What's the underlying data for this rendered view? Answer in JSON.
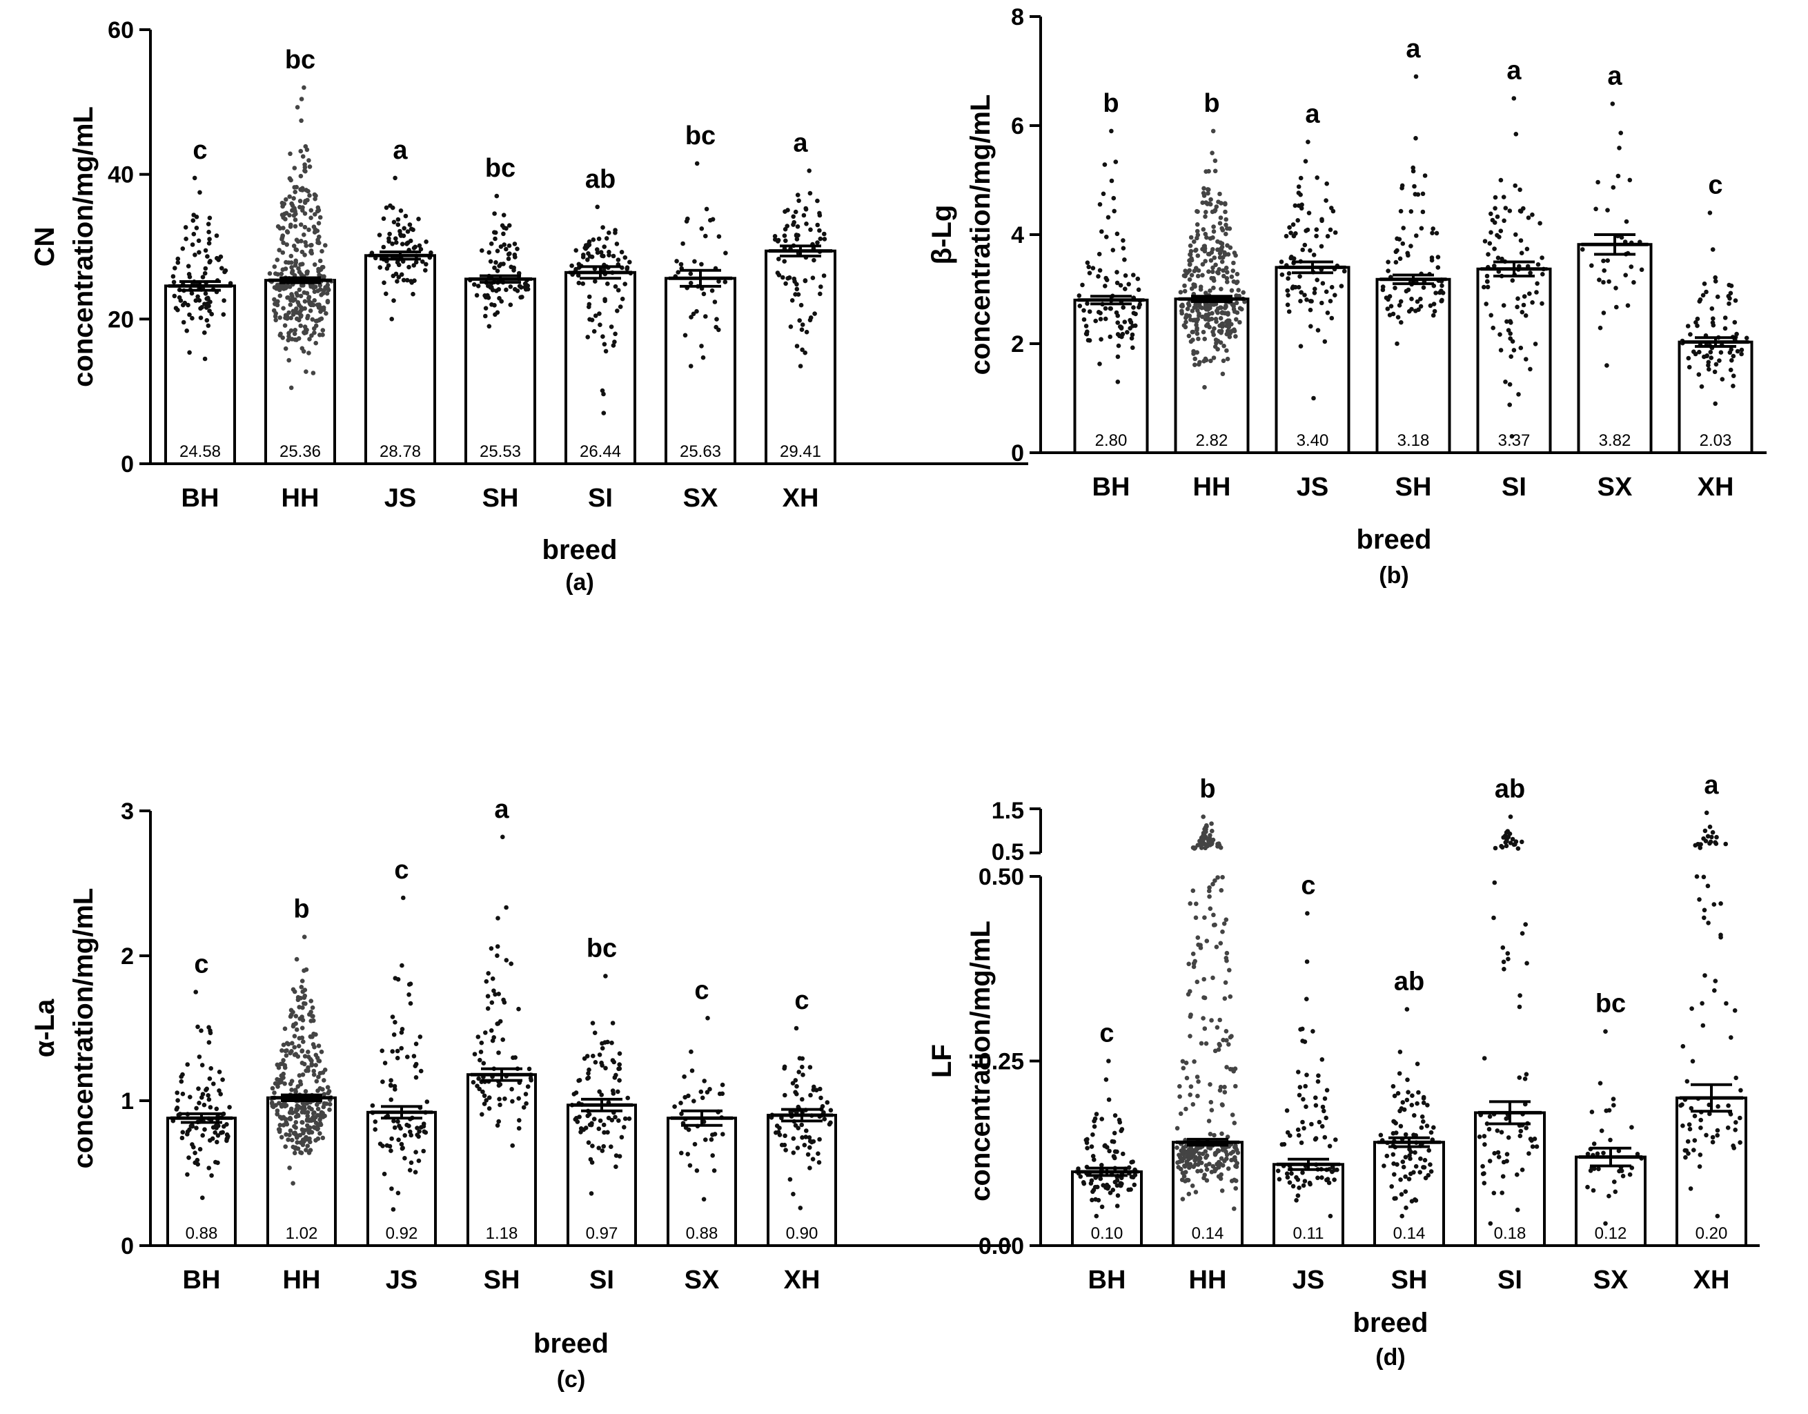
{
  "chart_data": [
    {
      "type": "bar",
      "panel": "(a)",
      "categories": [
        "BH",
        "HH",
        "JS",
        "SH",
        "SI",
        "SX",
        "XH"
      ],
      "values": [
        24.58,
        25.36,
        28.78,
        25.53,
        26.44,
        25.63,
        29.41
      ],
      "value_labels": [
        "24.58",
        "25.36",
        "28.78",
        "25.53",
        "26.44",
        "25.63",
        "29.41"
      ],
      "sem": [
        0.6,
        0.35,
        0.5,
        0.45,
        0.8,
        1.1,
        0.7
      ],
      "significance": [
        "c",
        "bc",
        "a",
        "bc",
        "ab",
        "bc",
        "a"
      ],
      "ylabel_line1": "CN",
      "ylabel_line2": "concentration/mg/mL",
      "xlabel": "breed",
      "ylim": [
        0,
        60
      ],
      "yticks": [
        0,
        20,
        40,
        60
      ],
      "ytick_labels": [
        "0",
        "20",
        "40",
        "60"
      ],
      "points_range": [
        [
          14.5,
          39.5
        ],
        [
          10.5,
          52
        ],
        [
          20,
          39.5
        ],
        [
          19,
          37
        ],
        [
          7,
          35.5
        ],
        [
          13.5,
          41.5
        ],
        [
          13.5,
          40.5
        ]
      ],
      "points_count": [
        95,
        320,
        80,
        85,
        90,
        40,
        80
      ],
      "seed": 11
    },
    {
      "type": "bar",
      "panel": "(b)",
      "categories": [
        "BH",
        "HH",
        "JS",
        "SH",
        "SI",
        "SX",
        "XH"
      ],
      "values": [
        2.8,
        2.82,
        3.4,
        3.18,
        3.37,
        3.82,
        2.03
      ],
      "value_labels": [
        "2.80",
        "2.82",
        "3.40",
        "3.18",
        "3.37",
        "3.82",
        "2.03"
      ],
      "sem": [
        0.07,
        0.05,
        0.1,
        0.08,
        0.13,
        0.18,
        0.08
      ],
      "significance": [
        "b",
        "b",
        "a",
        "a",
        "a",
        "a",
        "c"
      ],
      "ylabel_line1": "β-Lg",
      "ylabel_line2": "concentration/mg/mL",
      "xlabel": "breed",
      "ylim": [
        0,
        8
      ],
      "yticks": [
        0,
        2,
        4,
        6,
        8
      ],
      "ytick_labels": [
        "0",
        "2",
        "4",
        "6",
        "8"
      ],
      "points_range": [
        [
          1.3,
          5.9
        ],
        [
          1.2,
          5.9
        ],
        [
          1.0,
          5.7
        ],
        [
          2.0,
          6.9
        ],
        [
          0.3,
          6.5
        ],
        [
          1.6,
          6.4
        ],
        [
          0.9,
          4.4
        ]
      ],
      "points_count": [
        95,
        320,
        85,
        85,
        90,
        35,
        75
      ],
      "seed": 23
    },
    {
      "type": "bar",
      "panel": "(c)",
      "categories": [
        "BH",
        "HH",
        "JS",
        "SH",
        "SI",
        "SX",
        "XH"
      ],
      "values": [
        0.88,
        1.02,
        0.92,
        1.18,
        0.97,
        0.88,
        0.9
      ],
      "value_labels": [
        "0.88",
        "1.02",
        "0.92",
        "1.18",
        "0.97",
        "0.88",
        "0.90"
      ],
      "sem": [
        0.03,
        0.02,
        0.04,
        0.04,
        0.04,
        0.05,
        0.04
      ],
      "significance": [
        "c",
        "b",
        "c",
        "a",
        "bc",
        "c",
        "c"
      ],
      "ylabel_line1": "α-La",
      "ylabel_line2": "concentration/mg/mL",
      "xlabel": "breed",
      "ylim": [
        0,
        3
      ],
      "yticks": [
        0,
        1,
        2,
        3
      ],
      "ytick_labels": [
        "0",
        "1",
        "2",
        "3"
      ],
      "points_range": [
        [
          0.33,
          1.75
        ],
        [
          0.43,
          2.13
        ],
        [
          0.25,
          2.4
        ],
        [
          0.69,
          2.82
        ],
        [
          0.36,
          1.86
        ],
        [
          0.32,
          1.57
        ],
        [
          0.26,
          1.5
        ]
      ],
      "points_count": [
        95,
        320,
        85,
        80,
        85,
        40,
        80
      ],
      "seed": 37
    },
    {
      "type": "bar",
      "panel": "(d)",
      "categories": [
        "BH",
        "HH",
        "JS",
        "SH",
        "SI",
        "SX",
        "XH"
      ],
      "values": [
        0.1,
        0.14,
        0.11,
        0.14,
        0.18,
        0.12,
        0.2
      ],
      "value_labels": [
        "0.10",
        "0.14",
        "0.11",
        "0.14",
        "0.18",
        "0.12",
        "0.20"
      ],
      "sem": [
        0.005,
        0.004,
        0.007,
        0.006,
        0.015,
        0.012,
        0.018
      ],
      "significance": [
        "c",
        "b",
        "c",
        "ab",
        "ab",
        "bc",
        "a"
      ],
      "ylabel_line1": "LF",
      "ylabel_line2": "concentration/mg/mL",
      "xlabel": "breed",
      "ylim": [
        0,
        0.5
      ],
      "axis_break": {
        "upper_range": [
          0.5,
          1.5
        ],
        "upper_tick_labels": [
          "1.5",
          "0.5"
        ]
      },
      "yticks": [
        0,
        0.25,
        0.5
      ],
      "ytick_labels": [
        "0.00",
        "0.25",
        "0.50"
      ],
      "points_range": [
        [
          0.04,
          0.25
        ],
        [
          0.05,
          1.3
        ],
        [
          0.04,
          0.45
        ],
        [
          0.04,
          0.32
        ],
        [
          0.03,
          1.3
        ],
        [
          0.03,
          0.29
        ],
        [
          0.04,
          1.4
        ]
      ],
      "points_count": [
        95,
        320,
        80,
        90,
        85,
        35,
        85
      ],
      "seed": 53
    }
  ]
}
